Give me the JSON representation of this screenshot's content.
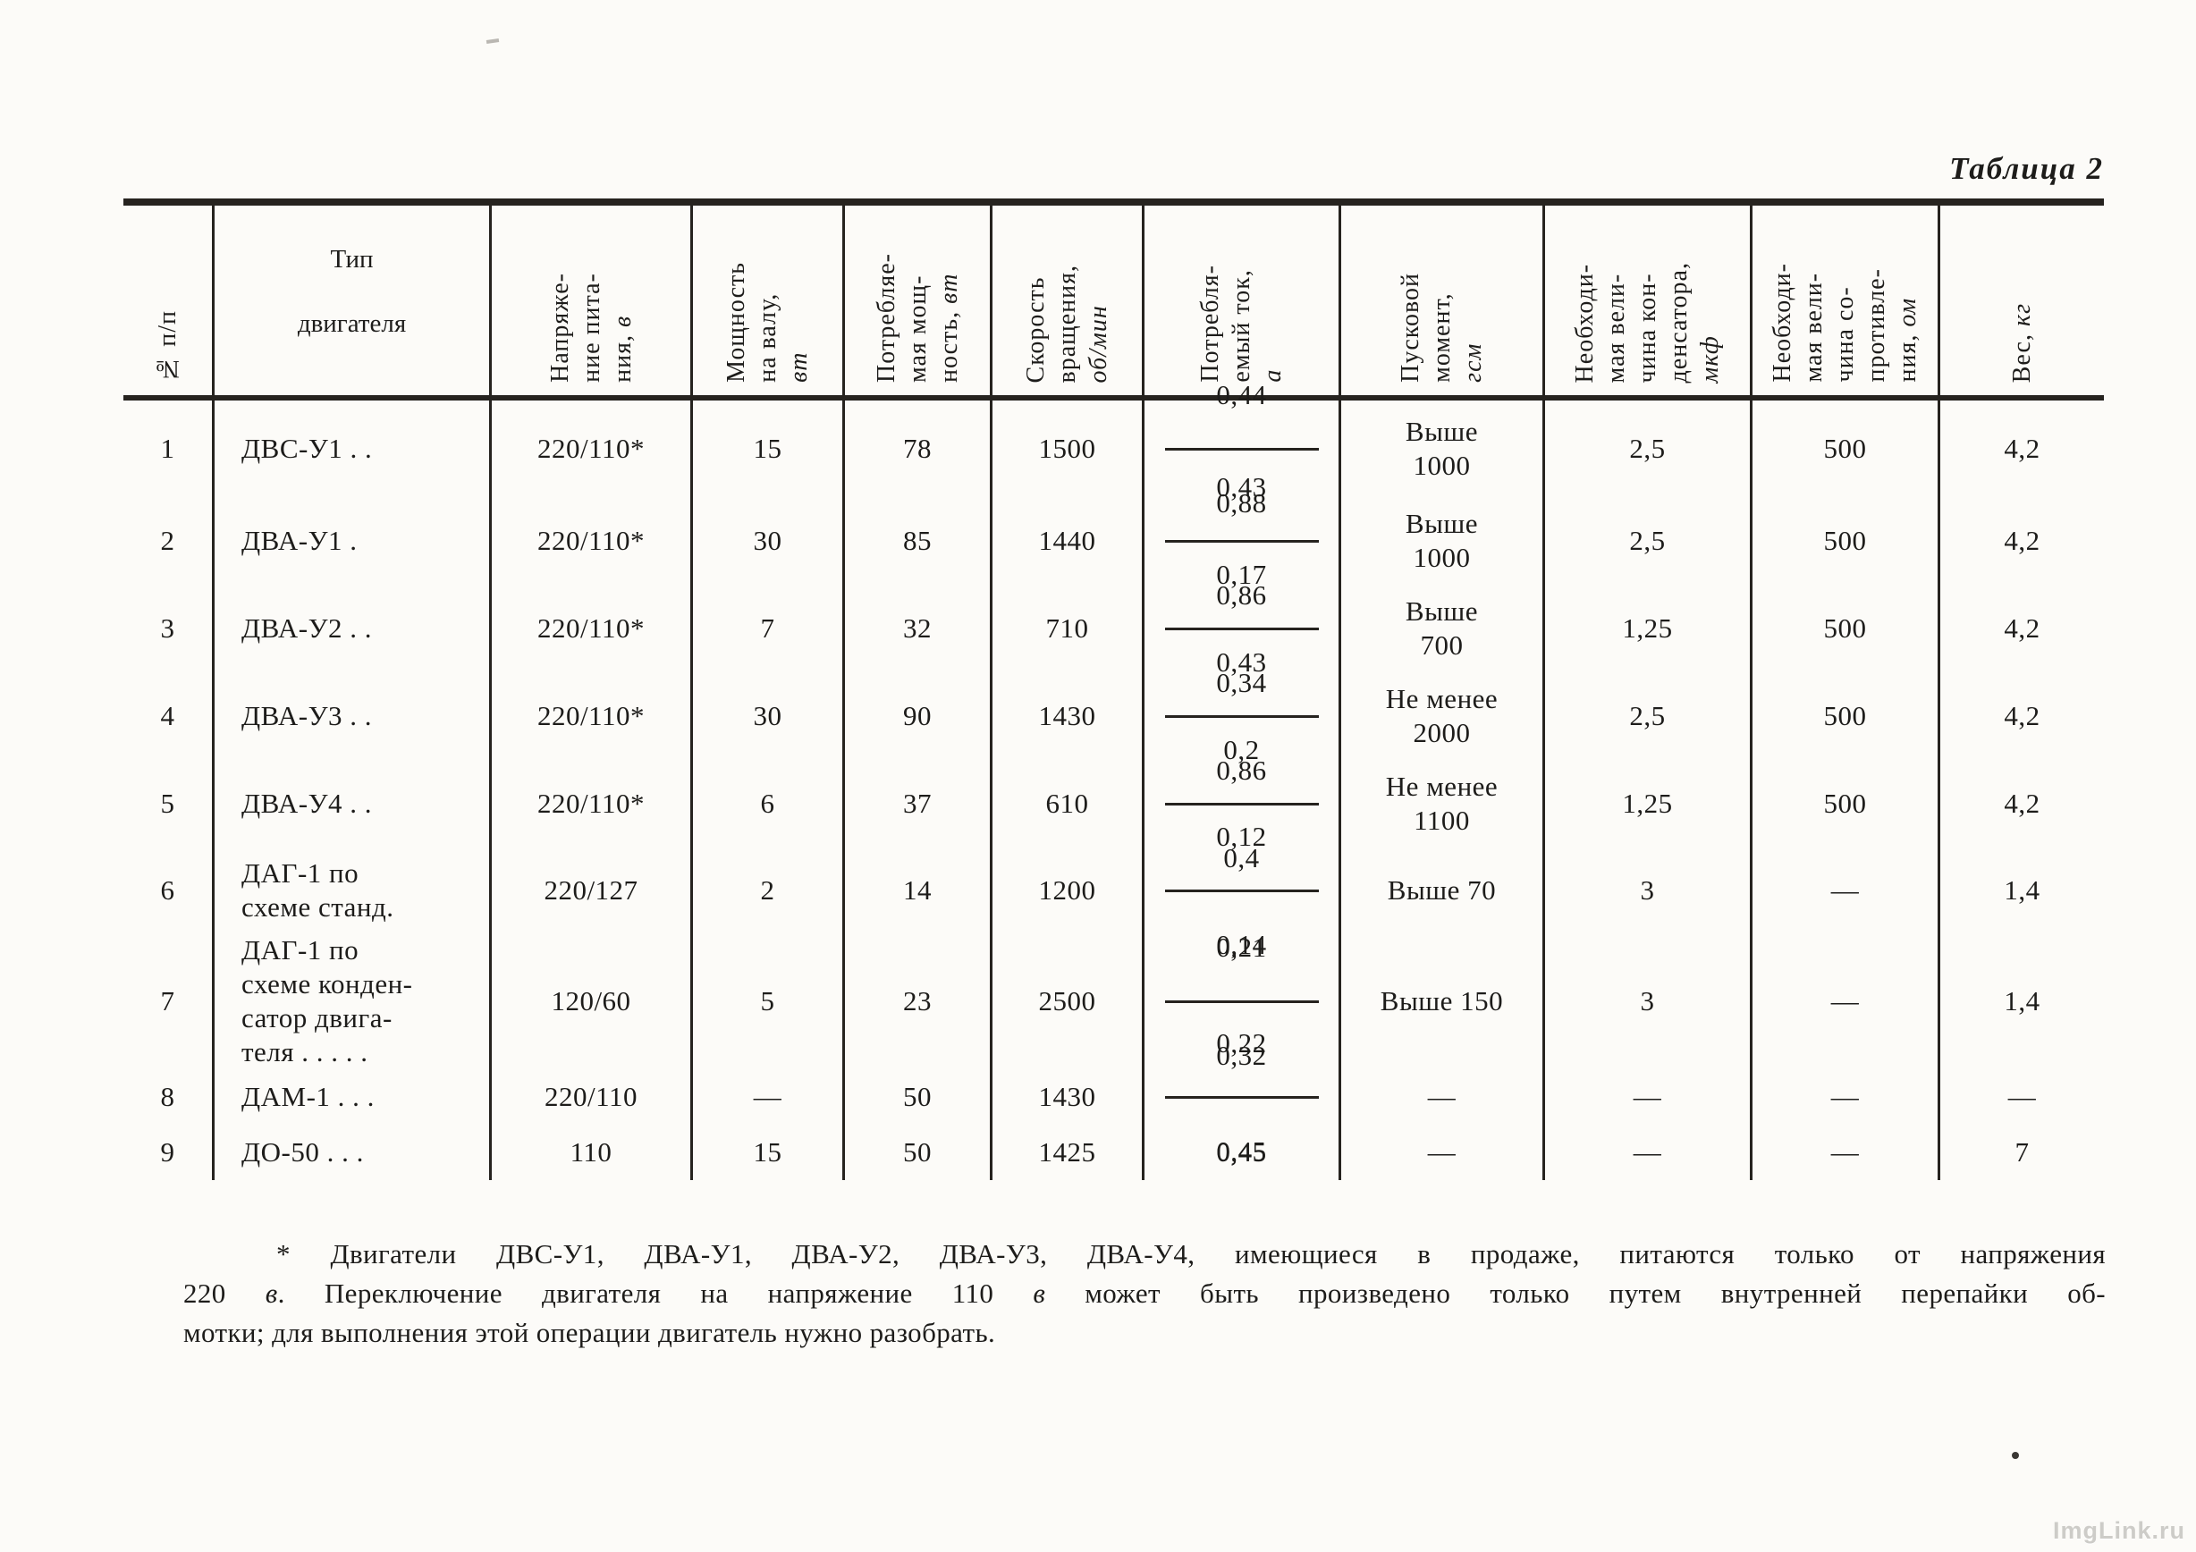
{
  "page": {
    "caption": "Таблица 2",
    "watermark": "ImgLink.ru"
  },
  "table": {
    "columns": [
      {
        "lines": [
          "№ п/п"
        ],
        "unit": ""
      },
      {
        "lines": [
          "Тип",
          "двигателя"
        ],
        "unit": ""
      },
      {
        "lines": [
          "Напряже-",
          "ние пита-",
          "ния,"
        ],
        "unit": "в"
      },
      {
        "lines": [
          "Мощность",
          "на валу,"
        ],
        "unit": "вт"
      },
      {
        "lines": [
          "Потребляе-",
          "мая мощ-",
          "ность,"
        ],
        "unit": "вт"
      },
      {
        "lines": [
          "Скорость",
          "вращения,"
        ],
        "unit": "об/мин"
      },
      {
        "lines": [
          "Потребля-",
          "емый ток,"
        ],
        "unit": "а"
      },
      {
        "lines": [
          "Пусковой",
          "момент,"
        ],
        "unit": "гсм"
      },
      {
        "lines": [
          "Необходи-",
          "мая вели-",
          "чина кон-",
          "денсатора,"
        ],
        "unit": "мкф"
      },
      {
        "lines": [
          "Необходи-",
          "мая вели-",
          "чина со-",
          "противле-",
          "ния,"
        ],
        "unit": "ом"
      },
      {
        "lines": [
          "Вес,"
        ],
        "unit": "кг"
      }
    ],
    "rows": [
      {
        "num": "1",
        "type": "ДВС-У1  .  .",
        "voltage": "220/110*",
        "shaft_power": "15",
        "consumed_power": "78",
        "speed": "1500",
        "current": {
          "top": "0,44",
          "bottom": "0,88"
        },
        "torque": "Выше\n1000",
        "capacitor": "2,5",
        "resistance": "500",
        "weight": "4,2"
      },
      {
        "num": "2",
        "type": "ДВА-У1  .",
        "voltage": "220/110*",
        "shaft_power": "30",
        "consumed_power": "85",
        "speed": "1440",
        "current": {
          "top": "0,43",
          "bottom": "0,86"
        },
        "torque": "Выше\n1000",
        "capacitor": "2,5",
        "resistance": "500",
        "weight": "4,2"
      },
      {
        "num": "3",
        "type": "ДВА-У2  .  .",
        "voltage": "220/110*",
        "shaft_power": "7",
        "consumed_power": "32",
        "speed": "710",
        "current": {
          "top": "0,17",
          "bottom": "0,34"
        },
        "torque": "Выше\n700",
        "capacitor": "1,25",
        "resistance": "500",
        "weight": "4,2"
      },
      {
        "num": "4",
        "type": "ДВА-У3  .  .",
        "voltage": "220/110*",
        "shaft_power": "30",
        "consumed_power": "90",
        "speed": "1430",
        "current": {
          "top": "0,43",
          "bottom": "0,86"
        },
        "torque": "Не менее\n2000",
        "capacitor": "2,5",
        "resistance": "500",
        "weight": "4,2"
      },
      {
        "num": "5",
        "type": "ДВА-У4  .  .",
        "voltage": "220/110*",
        "shaft_power": "6",
        "consumed_power": "37",
        "speed": "610",
        "current": {
          "top": "0,2",
          "bottom": "0,4"
        },
        "torque": "Не менее\n1100",
        "capacitor": "1,25",
        "resistance": "500",
        "weight": "4,2"
      },
      {
        "num": "6",
        "type": "ДАГ-1  по\nсхеме станд.",
        "voltage": "220/127",
        "shaft_power": "2",
        "consumed_power": "14",
        "speed": "1200",
        "current": {
          "top": "0,12",
          "bottom": "0,14"
        },
        "torque": "Выше  70",
        "capacitor": "3",
        "resistance": "—",
        "weight": "1,4"
      },
      {
        "num": "7",
        "type": "ДАГ-1 по\nсхеме конден-\nсатор  двига-\nтеля .  .  .  .  .",
        "voltage": "120/60",
        "shaft_power": "5",
        "consumed_power": "23",
        "speed": "2500",
        "current": {
          "top": "0,21",
          "bottom": "0,32"
        },
        "torque": "Выше  150",
        "capacitor": "3",
        "resistance": "—",
        "weight": "1,4"
      },
      {
        "num": "8",
        "type": "ДАМ-1 .  .  .",
        "voltage": "220/110",
        "shaft_power": "—",
        "consumed_power": "50",
        "speed": "1430",
        "current": {
          "top": "0,22",
          "bottom": "0,45"
        },
        "torque": "—",
        "capacitor": "—",
        "resistance": "—",
        "weight": "—"
      },
      {
        "num": "9",
        "type": "ДО-50  .  .  .",
        "voltage": "110",
        "shaft_power": "15",
        "consumed_power": "50",
        "speed": "1425",
        "current_value": "0,45",
        "torque": "—",
        "capacitor": "—",
        "resistance": "—",
        "weight": "7"
      }
    ]
  },
  "footnote": {
    "line1": "* Двигатели  ДВС-У1, ДВА-У1,  ДВА-У2, ДВА-У3,  ДВА-У4,  имеющиеся  в  продаже,  питаются  только  от  напряжения",
    "line2a": "220 ",
    "line2_unit1": "в",
    "line2b": ". Переключение двигателя на напряжение 110 ",
    "line2_unit2": "в",
    "line2c": " может быть произведено только путем внутренней перепайки об-",
    "line3": "мотки; для выполнения этой операции двигатель нужно разобрать."
  }
}
